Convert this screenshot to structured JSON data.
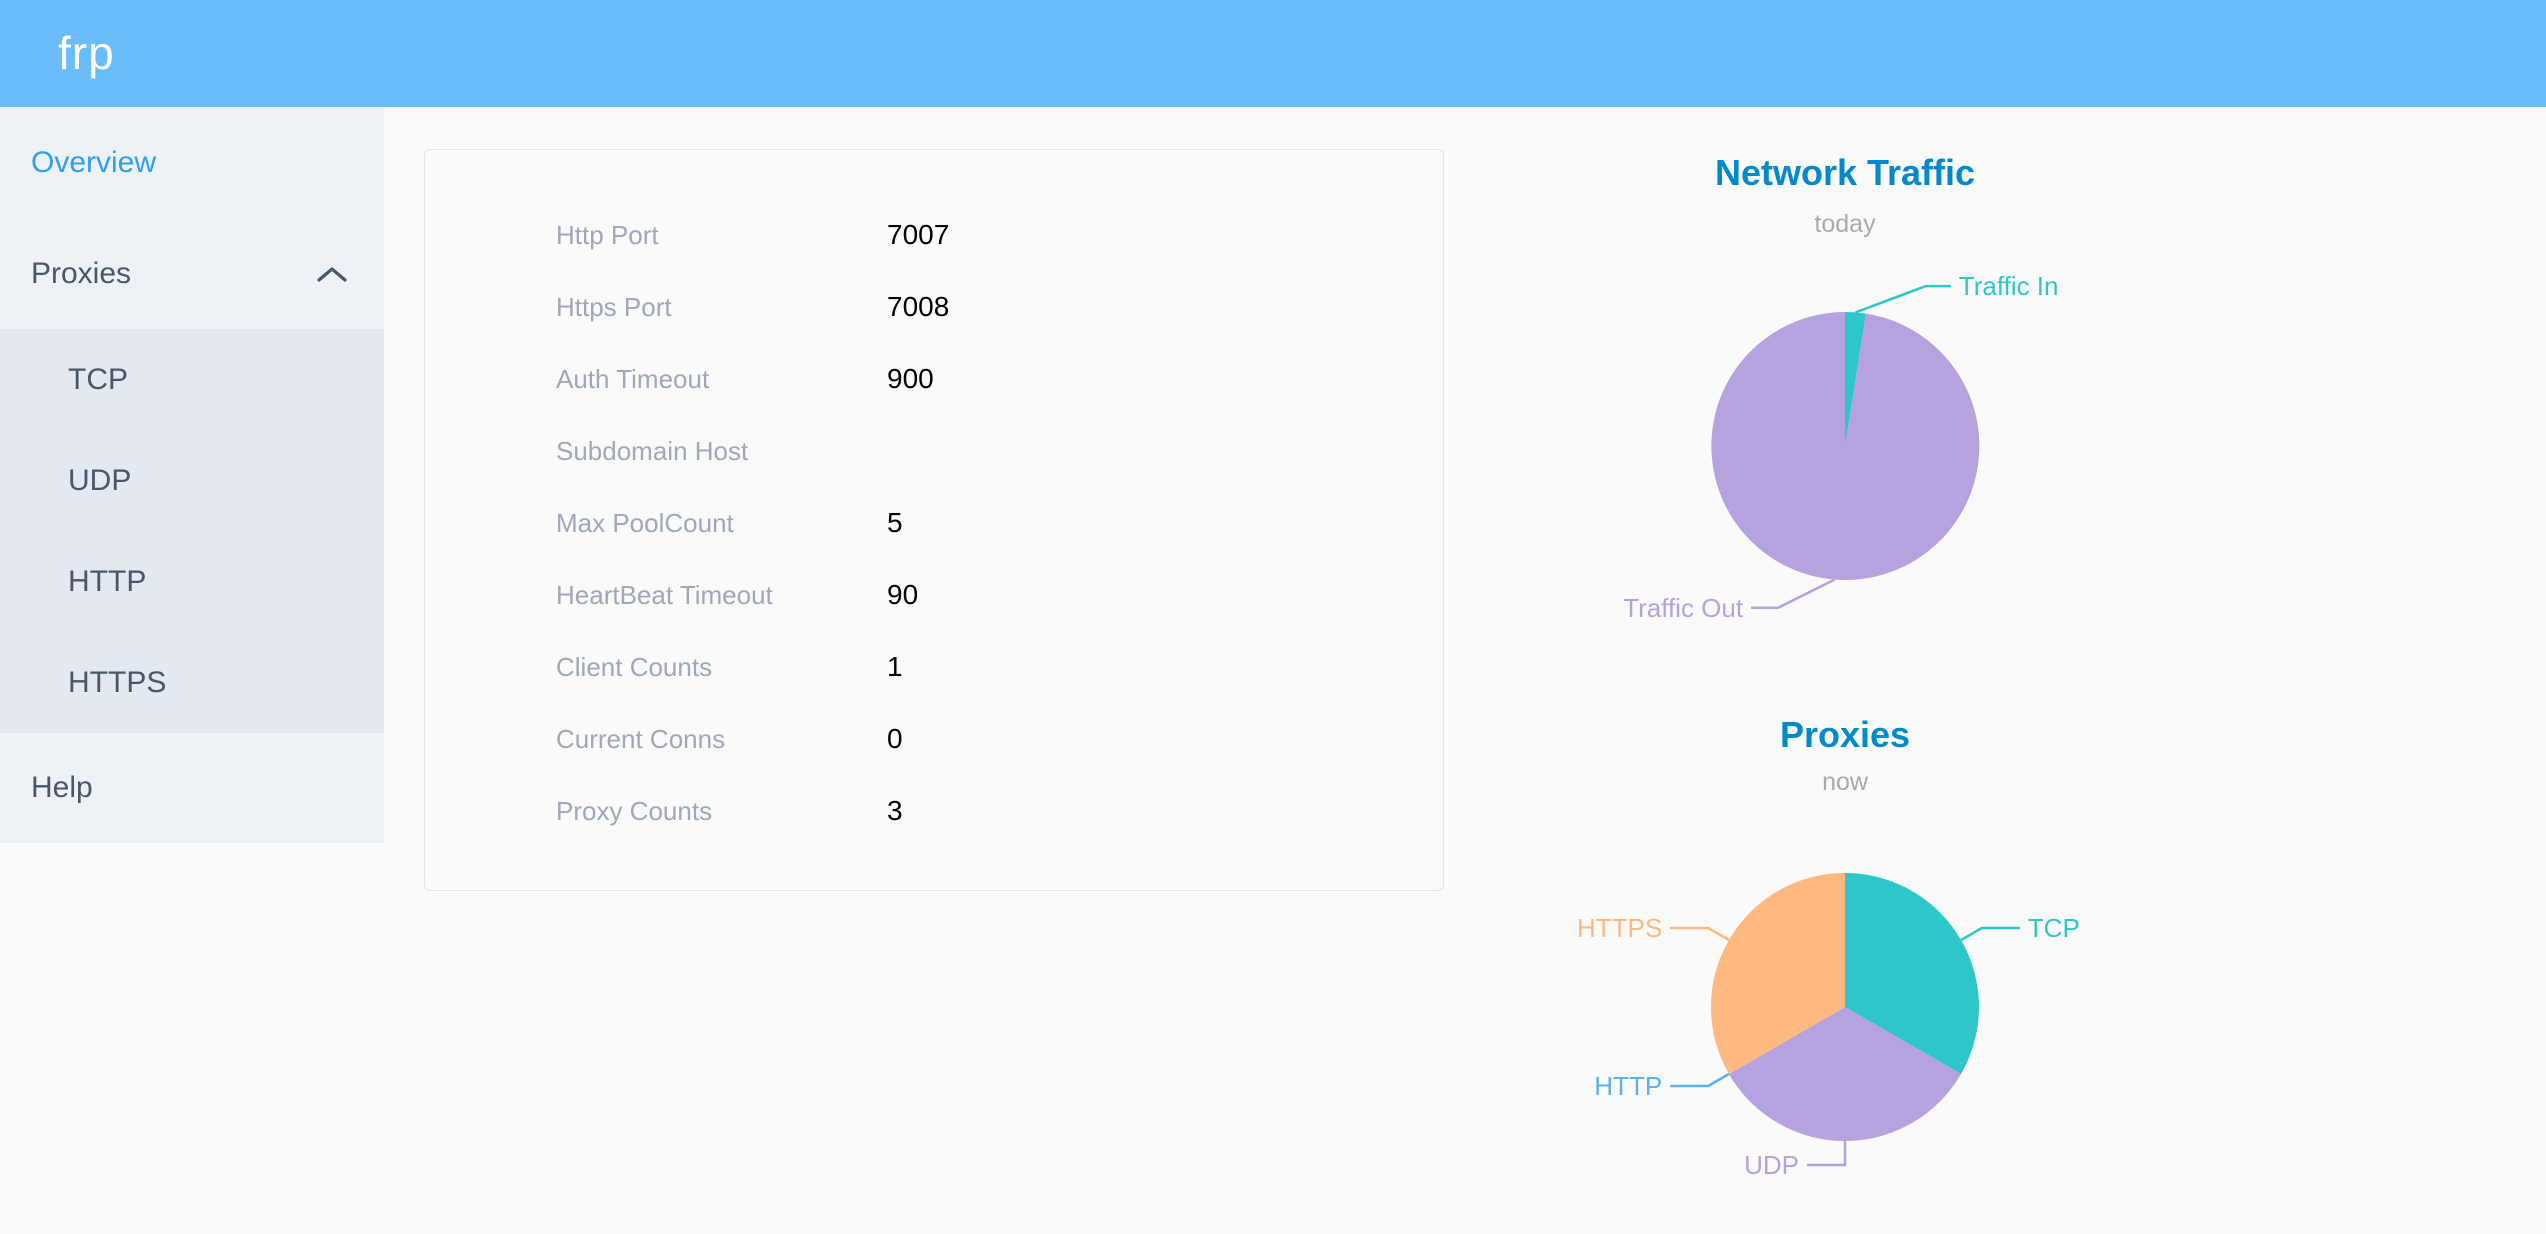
{
  "app": {
    "logo": "frp"
  },
  "colors": {
    "header_bg": "#6abcfb",
    "page_bg": "#fafafa",
    "sidebar_bg": "#eef1f6",
    "submenu_bg": "#e4e8f1",
    "sidebar_text": "#48576a",
    "active_text": "#2d9ff6",
    "card_border": "#e4e4e4",
    "card_label": "#9ea8ba",
    "card_value": "#000000",
    "chart_title": "#008acd",
    "chart_subtitle": "#aaaaaa",
    "logo_text": "#ffffff"
  },
  "sidebar": {
    "items": [
      {
        "label": "Overview",
        "active": true
      },
      {
        "label": "Proxies",
        "expanded": true,
        "children": [
          {
            "label": "TCP"
          },
          {
            "label": "UDP"
          },
          {
            "label": "HTTP"
          },
          {
            "label": "HTTPS"
          }
        ]
      },
      {
        "label": "Help"
      }
    ]
  },
  "server_info": {
    "rows": [
      {
        "label": "Http Port",
        "value": "7007"
      },
      {
        "label": "Https Port",
        "value": "7008"
      },
      {
        "label": "Auth Timeout",
        "value": "900"
      },
      {
        "label": "Subdomain Host",
        "value": ""
      },
      {
        "label": "Max PoolCount",
        "value": "5"
      },
      {
        "label": "HeartBeat Timeout",
        "value": "90"
      },
      {
        "label": "Client Counts",
        "value": "1"
      },
      {
        "label": "Current Conns",
        "value": "0"
      },
      {
        "label": "Proxy Counts",
        "value": "3"
      }
    ]
  },
  "chart_data": [
    {
      "type": "pie",
      "title": "Network Traffic",
      "subtitle": "today",
      "legend": "none",
      "label_position": "outside-leader-lines",
      "slices": [
        {
          "label": "Traffic In",
          "percent": 2.5,
          "color": "#2ec7c9",
          "leader_tilt": 65,
          "leader_len": 75,
          "leader_len2": 25
        },
        {
          "label": "Traffic Out",
          "percent": 97.5,
          "color": "#b6a2de",
          "leader_tilt": 59,
          "leader_len": 63,
          "leader_len2": 27
        }
      ]
    },
    {
      "type": "pie",
      "title": "Proxies",
      "subtitle": "now",
      "legend": "none",
      "label_position": "outside-leader-lines",
      "slices": [
        {
          "label": "TCP",
          "value": 1,
          "percent": 33.34,
          "color": "#2ec7c9"
        },
        {
          "label": "UDP",
          "value": 1,
          "percent": 33.33,
          "color": "#b6a2de"
        },
        {
          "label": "HTTP",
          "value": 0,
          "percent": 0,
          "color": "#5ab1ef"
        },
        {
          "label": "HTTPS",
          "value": 1,
          "percent": 33.33,
          "color": "#ffb980"
        }
      ]
    }
  ]
}
